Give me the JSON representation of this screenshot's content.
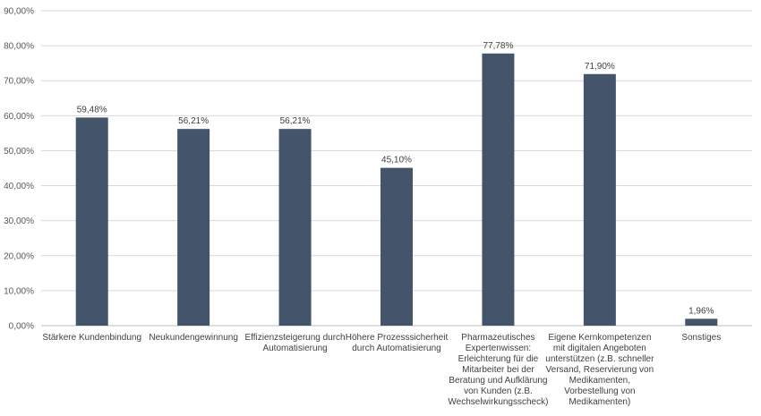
{
  "chart_data": {
    "type": "bar",
    "categories": [
      [
        "Stärkere Kundenbindung"
      ],
      [
        "Neukundengewinnung"
      ],
      [
        "Effizienzsteigerung durch",
        "Automatisierung"
      ],
      [
        "Höhere Prozesssicherheit",
        "durch Automatisierung"
      ],
      [
        "Pharmazeutisches",
        "Expertenwissen:",
        "Erleichterung für die",
        "Mitarbeiter bei der",
        "Beratung und Aufklärung",
        "von Kunden (z.B.",
        "Wechselwirkungsscheck)"
      ],
      [
        "Eigene Kernkompetenzen",
        "mit digitalen Angeboten",
        "unterstützen (z.B. schneller",
        "Versand, Reservierung von",
        "Medikamenten,",
        "Vorbestellung von",
        "Medikamenten)"
      ],
      [
        "Sonstiges"
      ]
    ],
    "values": [
      59.48,
      56.21,
      56.21,
      45.1,
      77.78,
      71.9,
      1.96
    ],
    "data_labels": [
      "59,48%",
      "56,21%",
      "56,21%",
      "45,10%",
      "77,78%",
      "71,90%",
      "1,96%"
    ],
    "ylim": [
      0,
      90
    ],
    "yticks": [
      "0,00%",
      "10,00%",
      "20,00%",
      "30,00%",
      "40,00%",
      "50,00%",
      "60,00%",
      "70,00%",
      "80,00%",
      "90,00%"
    ],
    "grid": true,
    "bar_color": "#44546a"
  }
}
